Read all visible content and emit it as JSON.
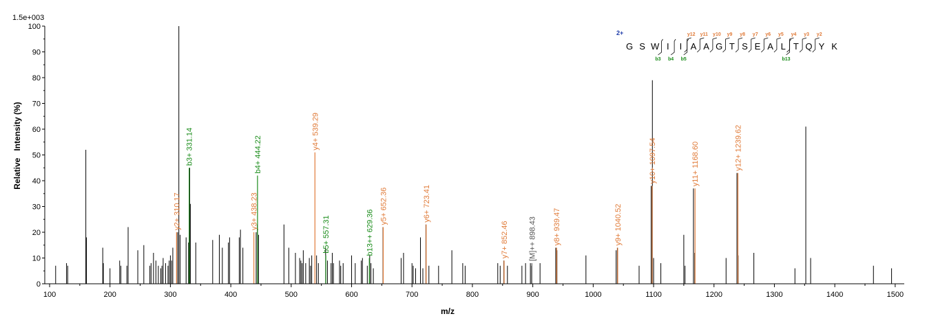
{
  "chart_data": {
    "type": "bar",
    "xlabel": "m/z",
    "ylabel": "Relative   Intensity (%)",
    "scale_label": "1.5e+003",
    "xlim": [
      92,
      1515
    ],
    "ylim": [
      0,
      100
    ],
    "xticks": [
      "100",
      "200",
      "300",
      "400",
      "500",
      "600",
      "700",
      "800",
      "900",
      "1000",
      "1100",
      "1200",
      "1300",
      "1400",
      "1500"
    ],
    "yticks": [
      "0",
      "10",
      "20",
      "30",
      "40",
      "50",
      "60",
      "70",
      "80",
      "90",
      "100"
    ],
    "colors": {
      "y": "#e07b39",
      "b": "#1a8c1a",
      "m": "#555555",
      "peak": "#000000",
      "charge": "#1c3aa8"
    },
    "peaks": [
      [
        110,
        7
      ],
      [
        128,
        8
      ],
      [
        130,
        7
      ],
      [
        160,
        52
      ],
      [
        161,
        18
      ],
      [
        188,
        14
      ],
      [
        189,
        8
      ],
      [
        200,
        6
      ],
      [
        216,
        9
      ],
      [
        218,
        7
      ],
      [
        228,
        7
      ],
      [
        230,
        22
      ],
      [
        246,
        13
      ],
      [
        256,
        15
      ],
      [
        266,
        7
      ],
      [
        268,
        8
      ],
      [
        272,
        12
      ],
      [
        276,
        9
      ],
      [
        280,
        7
      ],
      [
        284,
        6
      ],
      [
        286,
        7
      ],
      [
        288,
        10
      ],
      [
        292,
        8
      ],
      [
        296,
        7
      ],
      [
        298,
        9
      ],
      [
        300,
        11
      ],
      [
        302,
        9
      ],
      [
        304,
        14
      ],
      [
        312,
        20
      ],
      [
        314,
        100
      ],
      [
        316,
        19
      ],
      [
        326,
        18
      ],
      [
        330,
        16
      ],
      [
        332,
        45
      ],
      [
        333,
        31
      ],
      [
        342,
        16
      ],
      [
        370,
        17
      ],
      [
        381,
        19
      ],
      [
        386,
        14
      ],
      [
        396,
        16
      ],
      [
        398,
        18
      ],
      [
        414,
        18
      ],
      [
        416,
        21
      ],
      [
        420,
        14
      ],
      [
        442,
        20
      ],
      [
        444,
        23
      ],
      [
        446,
        19
      ],
      [
        488,
        23
      ],
      [
        496,
        14
      ],
      [
        507,
        12
      ],
      [
        514,
        10
      ],
      [
        516,
        9
      ],
      [
        518,
        8
      ],
      [
        520,
        13
      ],
      [
        524,
        8
      ],
      [
        530,
        10
      ],
      [
        532,
        7
      ],
      [
        534,
        11
      ],
      [
        542,
        11
      ],
      [
        545,
        8
      ],
      [
        557,
        14
      ],
      [
        560,
        9
      ],
      [
        566,
        8
      ],
      [
        568,
        12
      ],
      [
        570,
        8
      ],
      [
        580,
        9
      ],
      [
        582,
        7
      ],
      [
        586,
        8
      ],
      [
        600,
        11
      ],
      [
        606,
        8
      ],
      [
        616,
        9
      ],
      [
        618,
        10
      ],
      [
        626,
        7
      ],
      [
        630,
        11
      ],
      [
        632,
        8
      ],
      [
        636,
        6
      ],
      [
        652,
        22
      ],
      [
        682,
        10
      ],
      [
        686,
        12
      ],
      [
        700,
        8
      ],
      [
        702,
        7
      ],
      [
        706,
        6
      ],
      [
        714,
        18
      ],
      [
        718,
        6
      ],
      [
        723,
        23
      ],
      [
        728,
        7
      ],
      [
        744,
        7
      ],
      [
        766,
        13
      ],
      [
        784,
        8
      ],
      [
        788,
        7
      ],
      [
        842,
        8
      ],
      [
        846,
        7
      ],
      [
        852,
        9
      ],
      [
        858,
        7
      ],
      [
        882,
        7
      ],
      [
        888,
        8
      ],
      [
        896,
        8
      ],
      [
        898,
        7
      ],
      [
        912,
        8
      ],
      [
        938,
        14
      ],
      [
        940,
        13
      ],
      [
        988,
        11
      ],
      [
        1038,
        13
      ],
      [
        1040,
        14
      ],
      [
        1076,
        7
      ],
      [
        1096,
        38
      ],
      [
        1098,
        79
      ],
      [
        1100,
        10
      ],
      [
        1112,
        8
      ],
      [
        1150,
        19
      ],
      [
        1152,
        7
      ],
      [
        1166,
        37
      ],
      [
        1168,
        12
      ],
      [
        1220,
        10
      ],
      [
        1238,
        43
      ],
      [
        1240,
        11
      ],
      [
        1266,
        12
      ],
      [
        1334,
        6
      ],
      [
        1352,
        61
      ],
      [
        1360,
        10
      ],
      [
        1464,
        7
      ],
      [
        1494,
        6
      ]
    ],
    "annotations": [
      {
        "x": 310.17,
        "y": 20,
        "label": "y2+ 310.17",
        "type": "y"
      },
      {
        "x": 331.14,
        "y": 45,
        "label": "b3+ 331.14",
        "type": "b"
      },
      {
        "x": 438.23,
        "y": 20,
        "label": "y3+ 438.23",
        "type": "y"
      },
      {
        "x": 444.22,
        "y": 42,
        "label": "b4+ 444.22",
        "type": "b"
      },
      {
        "x": 539.29,
        "y": 51,
        "label": "y4+ 539.29",
        "type": "y"
      },
      {
        "x": 557.31,
        "y": 11,
        "label": "b5+ 557.31",
        "type": "b"
      },
      {
        "x": 629.36,
        "y": 10,
        "label": "b13++ 629.36",
        "type": "b"
      },
      {
        "x": 652.36,
        "y": 22,
        "label": "y5+ 652.36",
        "type": "y"
      },
      {
        "x": 723.41,
        "y": 23,
        "label": "y6+ 723.41",
        "type": "y"
      },
      {
        "x": 852.46,
        "y": 9,
        "label": "y7+ 852.46",
        "type": "y"
      },
      {
        "x": 898.43,
        "y": 8,
        "label": "[M]++ 898.43",
        "type": "m"
      },
      {
        "x": 939.47,
        "y": 14,
        "label": "y8+ 939.47",
        "type": "y"
      },
      {
        "x": 1040.52,
        "y": 14,
        "label": "y9+ 1040.52",
        "type": "y"
      },
      {
        "x": 1097.54,
        "y": 38,
        "label": "y10+ 1097.54",
        "type": "y"
      },
      {
        "x": 1168.6,
        "y": 37,
        "label": "y11+ 1168.60",
        "type": "y"
      },
      {
        "x": 1239.62,
        "y": 43,
        "label": "y12+ 1239.62",
        "type": "y"
      }
    ],
    "sequence": {
      "charge": "2+",
      "residues": [
        "G",
        "S",
        "W",
        "I",
        "I",
        "A",
        "A",
        "G",
        "T",
        "S",
        "E",
        "A",
        "L",
        "T",
        "Q",
        "Y",
        "K"
      ],
      "y_ions": [
        {
          "label": "y12",
          "after": 4
        },
        {
          "label": "y11",
          "after": 5
        },
        {
          "label": "y10",
          "after": 6
        },
        {
          "label": "y9",
          "after": 7
        },
        {
          "label": "y8",
          "after": 8
        },
        {
          "label": "y7",
          "after": 9
        },
        {
          "label": "y6",
          "after": 10
        },
        {
          "label": "y5",
          "after": 11
        },
        {
          "label": "y4",
          "after": 12
        },
        {
          "label": "y3",
          "after": 13
        },
        {
          "label": "y2",
          "after": 14
        }
      ],
      "b_ions": [
        {
          "label": "b3",
          "after": 2
        },
        {
          "label": "b4",
          "after": 3
        },
        {
          "label": "b5",
          "after": 4
        },
        {
          "label": "b13",
          "after": 12
        }
      ]
    }
  }
}
